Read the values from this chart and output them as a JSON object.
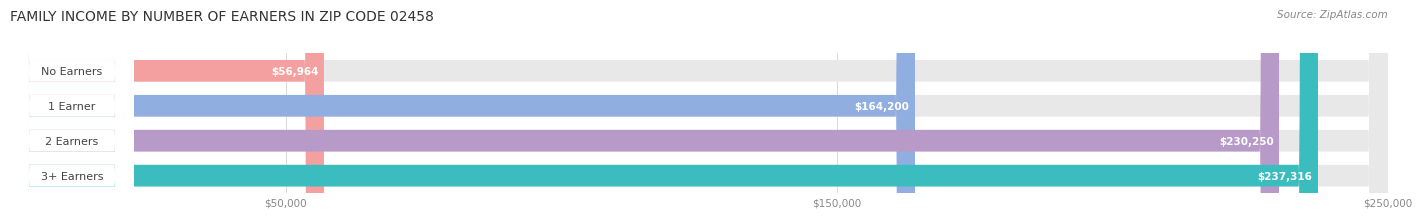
{
  "title": "FAMILY INCOME BY NUMBER OF EARNERS IN ZIP CODE 02458",
  "source": "Source: ZipAtlas.com",
  "categories": [
    "No Earners",
    "1 Earner",
    "2 Earners",
    "3+ Earners"
  ],
  "values": [
    56964,
    164200,
    230250,
    237316
  ],
  "value_labels": [
    "$56,964",
    "$164,200",
    "$230,250",
    "$237,316"
  ],
  "bar_colors": [
    "#f4a0a0",
    "#90aee0",
    "#b89ac8",
    "#3bbcbe"
  ],
  "bar_bg_color": "#e8e8e8",
  "xlim_min": 0,
  "xlim_max": 250000,
  "xticks": [
    50000,
    150000,
    250000
  ],
  "xtick_labels": [
    "$50,000",
    "$150,000",
    "$250,000"
  ],
  "title_fontsize": 10,
  "source_fontsize": 7.5,
  "bar_label_fontsize": 8,
  "value_label_fontsize": 7.5,
  "background_color": "#ffffff",
  "bar_height": 0.62,
  "rounding_size": 3500
}
